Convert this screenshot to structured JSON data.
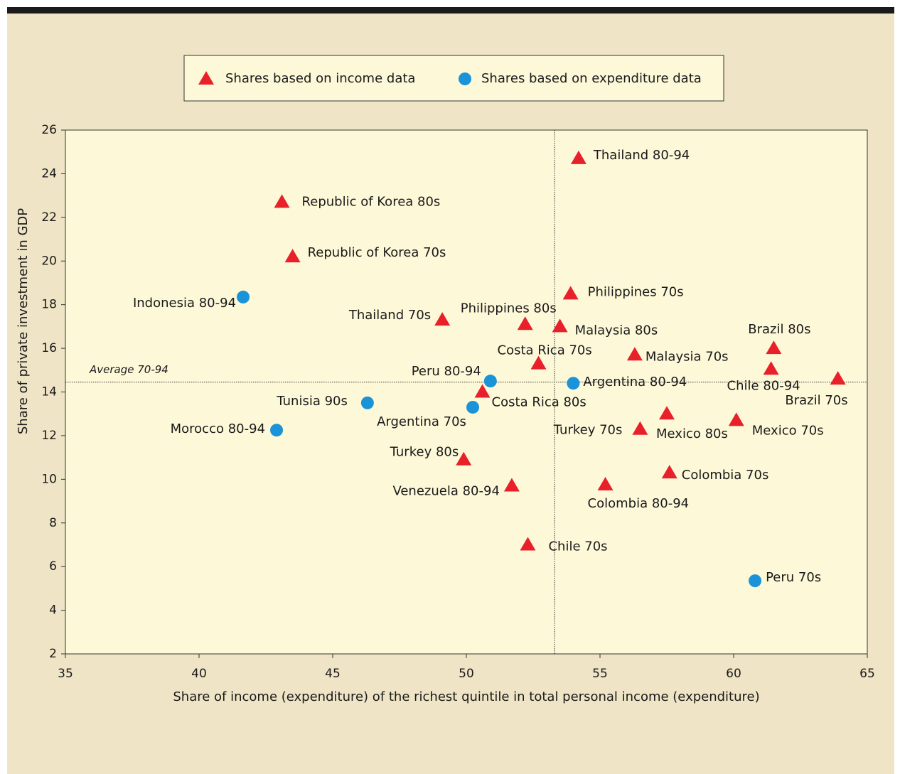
{
  "chart_data": {
    "type": "scatter",
    "xlabel": "Share of income (expenditure) of the richest quintile in total personal income (expenditure)",
    "ylabel": "Share of private investment in GDP",
    "xlim": [
      35,
      65
    ],
    "ylim": [
      2,
      26
    ],
    "xticks": [
      35,
      40,
      45,
      50,
      55,
      60,
      65
    ],
    "yticks": [
      2,
      4,
      6,
      8,
      10,
      12,
      14,
      16,
      18,
      20,
      22,
      24,
      26
    ],
    "reference_lines": {
      "x": 53.3,
      "y": 14.45,
      "y_label": "Average 70-94"
    },
    "series": [
      {
        "name": "Shares based on income data",
        "color": "#e8202a",
        "marker": "triangle",
        "labels": [
          "Thailand 80-94",
          "Republic of Korea 80s",
          "Republic of Korea 70s",
          "Thailand 70s",
          "Philippines 80s",
          "Malaysia 80s",
          "Philippines 70s",
          "Costa Rica 70s",
          "Malaysia 70s",
          "Brazil 80s",
          "Chile 80-94",
          "Brazil 70s",
          "Costa Rica 80s",
          "Turkey 70s",
          "Mexico 80s",
          "Mexico 70s",
          "Turkey 80s",
          "Venezuela 80-94",
          "Colombia 80-94",
          "Colombia 70s",
          "Chile 70s"
        ],
        "x": [
          54.2,
          43.1,
          43.5,
          49.1,
          52.2,
          53.5,
          53.9,
          52.7,
          56.3,
          61.5,
          61.4,
          63.9,
          50.6,
          56.5,
          57.5,
          60.1,
          49.9,
          51.7,
          55.2,
          57.6,
          52.3
        ],
        "y": [
          24.7,
          22.7,
          20.2,
          17.3,
          17.1,
          17.0,
          18.5,
          15.3,
          15.7,
          16.0,
          15.05,
          14.6,
          14.0,
          12.3,
          13.0,
          12.7,
          10.9,
          9.7,
          9.75,
          10.3,
          7.0
        ]
      },
      {
        "name": "Shares based on expenditure data",
        "color": "#1b93d8",
        "marker": "circle",
        "labels": [
          "Indonesia 80-94",
          "Peru 80-94",
          "Argentina 80-94",
          "Tunisia 90s",
          "Argentina 70s",
          "Morocco 80-94",
          "Peru 70s"
        ],
        "x": [
          41.65,
          50.9,
          54.0,
          46.3,
          50.24,
          42.9,
          60.8
        ],
        "y": [
          18.35,
          14.5,
          14.4,
          13.5,
          13.3,
          12.25,
          5.35
        ]
      }
    ]
  }
}
